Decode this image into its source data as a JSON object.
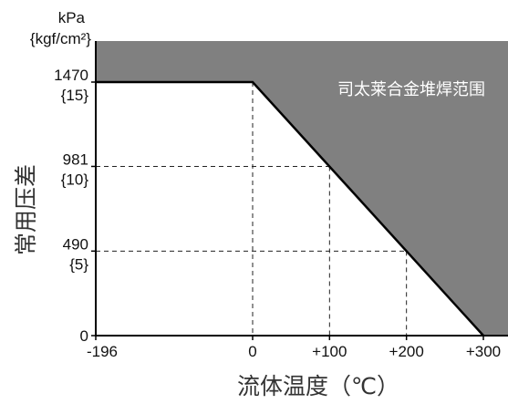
{
  "chart_data": {
    "type": "area",
    "xlabel": "流体温度（℃）",
    "ylabel": "常用压差",
    "y_unit": [
      "kPa",
      "{kgf/cm²}"
    ],
    "x_ticks": [
      {
        "value": -196,
        "label": "-196"
      },
      {
        "value": 0,
        "label": "0"
      },
      {
        "value": 100,
        "label": "+100"
      },
      {
        "value": 200,
        "label": "+200"
      },
      {
        "value": 300,
        "label": "+300"
      }
    ],
    "y_ticks": [
      {
        "value": 0,
        "label": "0"
      },
      {
        "value": 490,
        "label": "490",
        "sub": "{5}"
      },
      {
        "value": 981,
        "label": "981",
        "sub": "{10}"
      },
      {
        "value": 1470,
        "label": "1470",
        "sub": "{15}"
      }
    ],
    "boundary": {
      "x": [
        -196,
        0,
        300
      ],
      "y": [
        1470,
        1470,
        0
      ]
    },
    "reference_points": {
      "x": [
        0,
        100,
        200
      ],
      "y": [
        1470,
        981,
        490
      ]
    },
    "region_label": "司太莱合金堆焊范围",
    "region_color": "#808080",
    "line_color": "#000000",
    "grid": false,
    "legend": "none"
  }
}
